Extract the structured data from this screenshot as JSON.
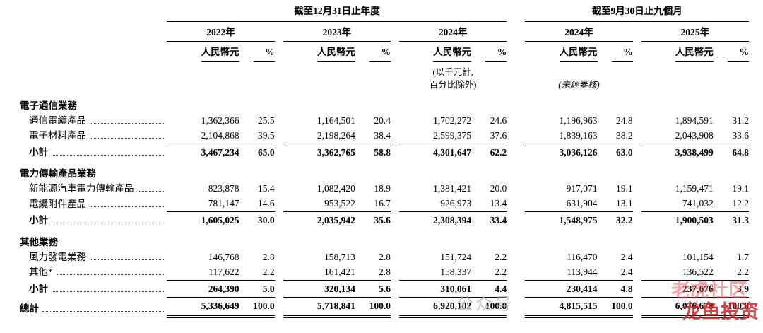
{
  "header": {
    "group_annual": "截至12月31日止年度",
    "group_nine_month": "截至9月30日止九個月",
    "years": [
      "2022年",
      "2023年",
      "2024年",
      "2024年",
      "2025年"
    ],
    "col_money": "人民幣元",
    "col_pct": "%",
    "note_line1": "(以千元計,",
    "note_line2": "百分比除外)",
    "note_unaudited": "(未經審核)"
  },
  "sections": [
    {
      "title": "電子通信業務",
      "rows": [
        {
          "label": "通信電纜產品",
          "values": [
            "1,362,366",
            "25.5",
            "1,164,501",
            "20.4",
            "1,702,272",
            "24.6",
            "1,196,963",
            "24.8",
            "1,894,591",
            "31.2"
          ]
        },
        {
          "label": "電子材料產品",
          "values": [
            "2,104,868",
            "39.5",
            "2,198,264",
            "38.4",
            "2,599,375",
            "37.6",
            "1,839,163",
            "38.2",
            "2,043,908",
            "33.6"
          ]
        }
      ],
      "subtotal": {
        "label": "小計",
        "values": [
          "3,467,234",
          "65.0",
          "3,362,765",
          "58.8",
          "4,301,647",
          "62.2",
          "3,036,126",
          "63.0",
          "3,938,499",
          "64.8"
        ]
      }
    },
    {
      "title": "電力傳輸產品業務",
      "rows": [
        {
          "label": "新能源汽車電力傳輸產品",
          "values": [
            "823,878",
            "15.4",
            "1,082,420",
            "18.9",
            "1,381,421",
            "20.0",
            "917,071",
            "19.1",
            "1,159,471",
            "19.1"
          ]
        },
        {
          "label": "電纜附件產品",
          "values": [
            "781,147",
            "14.6",
            "953,522",
            "16.7",
            "926,973",
            "13.4",
            "631,904",
            "13.1",
            "741,032",
            "12.2"
          ]
        }
      ],
      "subtotal": {
        "label": "小計",
        "values": [
          "1,605,025",
          "30.0",
          "2,035,942",
          "35.6",
          "2,308,394",
          "33.4",
          "1,548,975",
          "32.2",
          "1,900,503",
          "31.3"
        ]
      }
    },
    {
      "title": "其他業務",
      "rows": [
        {
          "label": "風力發電業務",
          "values": [
            "146,768",
            "2.8",
            "158,713",
            "2.8",
            "151,724",
            "2.2",
            "116,470",
            "2.4",
            "101,154",
            "1.7"
          ]
        },
        {
          "label": "其他*",
          "values": [
            "117,622",
            "2.2",
            "161,421",
            "2.8",
            "158,337",
            "2.2",
            "113,944",
            "2.4",
            "136,522",
            "2.2"
          ]
        }
      ],
      "subtotal": {
        "label": "小計",
        "values": [
          "264,390",
          "5.0",
          "320,134",
          "5.6",
          "310,061",
          "4.4",
          "230,414",
          "4.8",
          "237,676",
          "3.9"
        ]
      }
    }
  ],
  "total": {
    "label": "總計",
    "values": [
      "5,336,649",
      "100.0",
      "5,718,841",
      "100.0",
      "6,920,102",
      "100.0",
      "4,815,515",
      "100.0",
      "6,076,678",
      "100.0"
    ]
  },
  "watermarks": {
    "badge": "公众号",
    "right_line1": "老虎社区",
    "right_line2": "龙鱼投资"
  }
}
